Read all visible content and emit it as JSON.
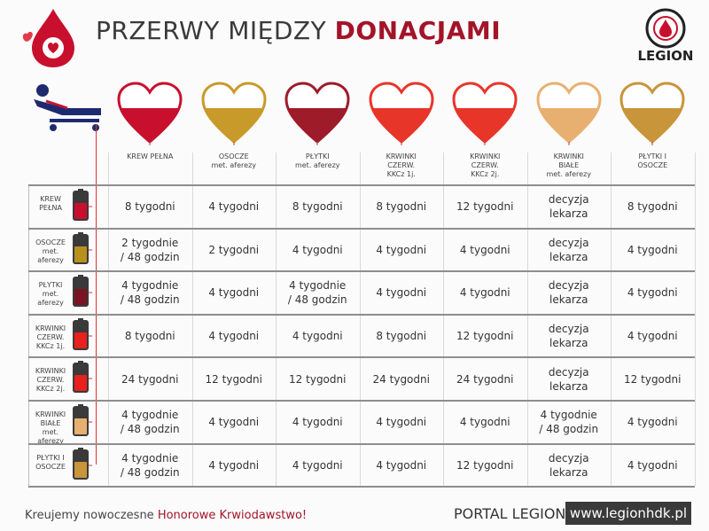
{
  "header": {
    "title": "PRZERWY MIĘDZY",
    "title_emphasis": "DONACJAMI",
    "logo": "LEGION"
  },
  "table": {
    "columns": [
      {
        "name": "KREW PEŁNA",
        "color": "#c8102e"
      },
      {
        "name": "OSOCZE",
        "sub": "met. aferezy",
        "color": "#c89a2a"
      },
      {
        "name": "PŁYTKI",
        "sub": "met. aferezy",
        "color": "#9e1b2a"
      },
      {
        "name": "KRWINKI CZERW.",
        "sub": "KKCz 1j.",
        "color": "#e8352a"
      },
      {
        "name": "KRWINKI CZERW.",
        "sub": "KKCz 2j.",
        "color": "#e8352a"
      },
      {
        "name": "KRWINKI BIAŁE",
        "sub": "met. aferezy",
        "color": "#e8b070"
      },
      {
        "name": "PŁYTKI I OSOCZE",
        "color": "#c8953a"
      }
    ],
    "rows": [
      {
        "name": "KREW PEŁNA",
        "color": "#c8102e",
        "cells": [
          "8 tygodni",
          "4 tygodni",
          "8 tygodni",
          "8 tygodni",
          "12 tygodni",
          "decyzja\nlekarza",
          "8 tygodni"
        ]
      },
      {
        "name": "OSOCZE",
        "sub": "met. aferezy",
        "color": "#b8901e",
        "cells": [
          "2 tygodnie\n/ 48 godzin",
          "2 tygodni",
          "4 tygodni",
          "4 tygodni",
          "4 tygodni",
          "decyzja\nlekarza",
          "4 tygodni"
        ]
      },
      {
        "name": "PŁYTKI",
        "sub": "met. aferezy",
        "color": "#7a1422",
        "cells": [
          "4 tygodnie\n/ 48 godzin",
          "4 tygodni",
          "4 tygodnie\n/ 48 godzin",
          "4 tygodni",
          "4 tygodni",
          "decyzja\nlekarza",
          "4 tygodni"
        ]
      },
      {
        "name": "KRWINKI CZERW.",
        "sub": "KKCz 1j.",
        "color": "#e8201e",
        "cells": [
          "8 tygodni",
          "4 tygodni",
          "4 tygodni",
          "8 tygodni",
          "12 tygodni",
          "decyzja\nlekarza",
          "4 tygodni"
        ]
      },
      {
        "name": "KRWINKI CZERW.",
        "sub": "KKCz 2j.",
        "color": "#e8201e",
        "cells": [
          "24 tygodni",
          "12 tygodni",
          "12 tygodni",
          "24 tygodni",
          "24 tygodni",
          "decyzja\nlekarza",
          "12 tygodni"
        ]
      },
      {
        "name": "KRWINKI BIAŁE",
        "sub": "met. aferezy",
        "color": "#e8b070",
        "cells": [
          "4 tygodnie\n/ 48 godzin",
          "4 tygodni",
          "4 tygodni",
          "4 tygodni",
          "4 tygodni",
          "4 tygodnie\n/ 48 godzin",
          "4 tygodni"
        ]
      },
      {
        "name": "PŁYTKI I OSOCZE",
        "color": "#c8953a",
        "cells": [
          "4 tygodnie\n/ 48 godzin",
          "4 tygodni",
          "4 tygodni",
          "4 tygodni",
          "12 tygodni",
          "decyzja\nlekarza",
          "4 tygodni"
        ]
      }
    ]
  },
  "footer": {
    "slogan": "Kreujemy nowoczesne",
    "slogan_emphasis": "Honorowe Krwiodawstwo!",
    "portal": "PORTAL LEGION",
    "url": "www.legionhdk.pl"
  }
}
